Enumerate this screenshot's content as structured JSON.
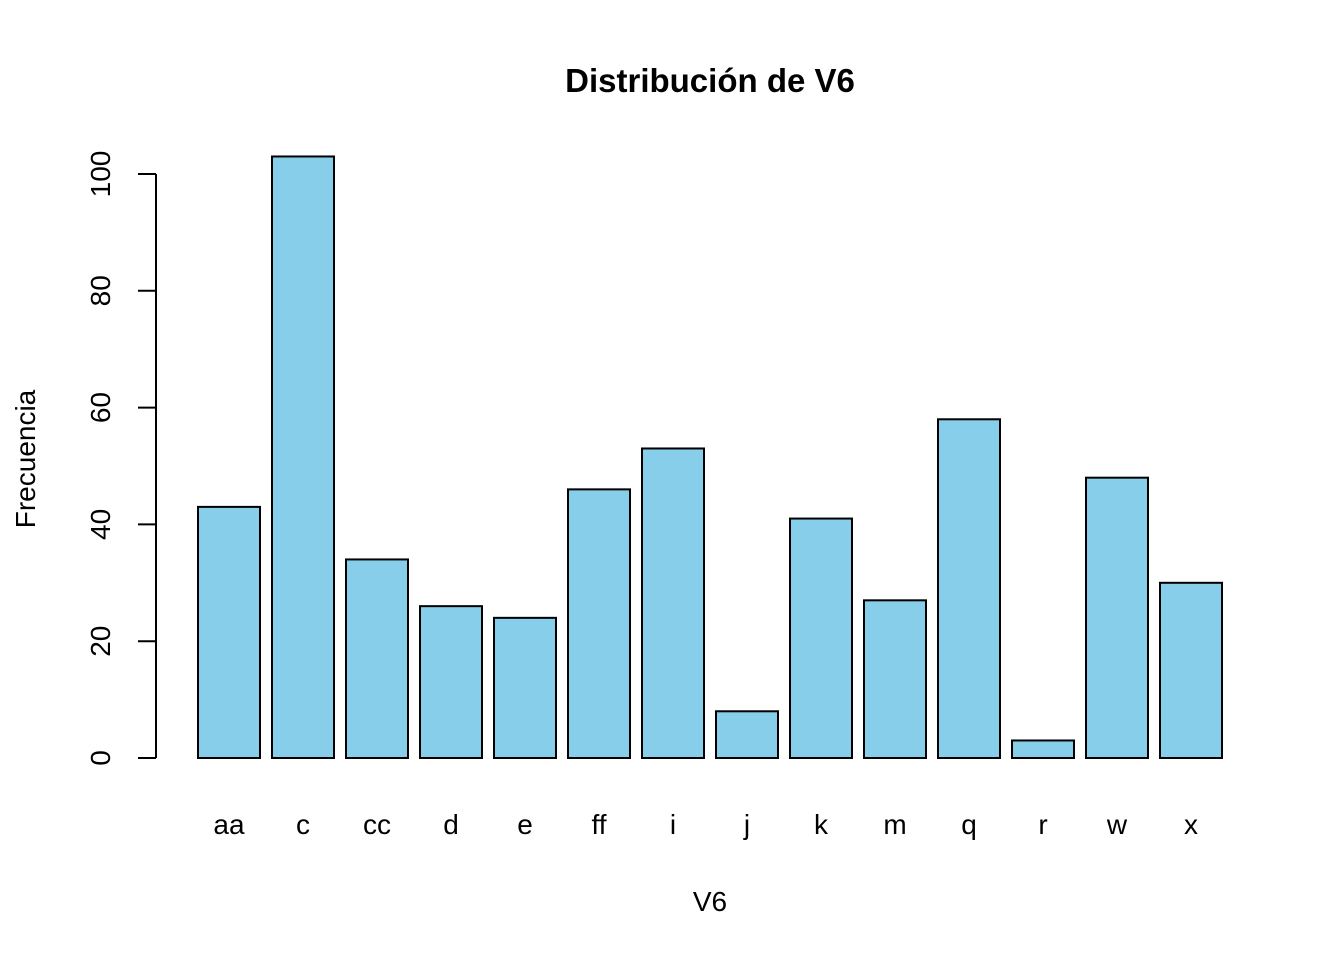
{
  "chart_data": {
    "type": "bar",
    "title": "Distribución de V6",
    "xlabel": "V6",
    "ylabel": "Frecuencia",
    "categories": [
      "aa",
      "c",
      "cc",
      "d",
      "e",
      "ff",
      "i",
      "j",
      "k",
      "m",
      "q",
      "r",
      "w",
      "x"
    ],
    "values": [
      43,
      103,
      34,
      26,
      24,
      46,
      53,
      8,
      41,
      27,
      58,
      3,
      48,
      30
    ],
    "ylim": [
      0,
      100
    ],
    "yticks": [
      "0",
      "20",
      "40",
      "60",
      "80",
      "100"
    ],
    "bar_color": "#87CEEB",
    "border_color": "#000000",
    "grid": false,
    "legend": false
  }
}
